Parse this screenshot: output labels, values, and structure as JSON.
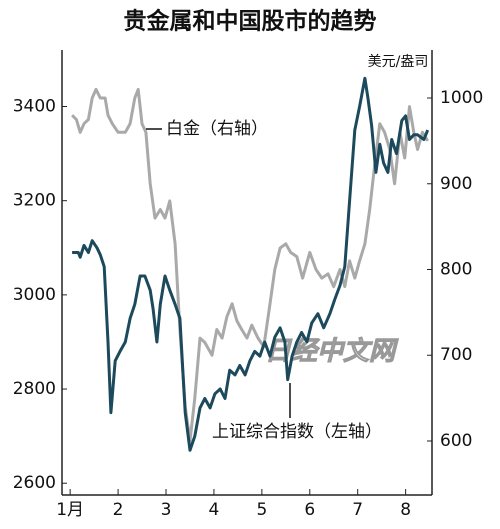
{
  "chart_data": {
    "type": "line",
    "title": "贵金属和中国股市的趋势",
    "y2_label": "美元/盎司",
    "watermark": "日经中文网",
    "xlim": [
      0.83,
      8.55
    ],
    "xticks": [
      {
        "value": 1,
        "label": "1月"
      },
      2,
      3,
      4,
      5,
      6,
      7,
      8
    ],
    "ylim": [
      2575,
      3520
    ],
    "yticks": [
      2600,
      2800,
      3000,
      3200,
      3400
    ],
    "y2lim": [
      537,
      1056
    ],
    "y2ticks": [
      600,
      700,
      800,
      900,
      1000
    ],
    "series": [
      {
        "name": "白金（右轴）",
        "color": "#a9a9a9",
        "axis": "y2",
        "x": [
          1.04,
          1.13,
          1.21,
          1.29,
          1.38,
          1.46,
          1.54,
          1.63,
          1.73,
          1.79,
          1.88,
          2.0,
          2.15,
          2.25,
          2.35,
          2.42,
          2.5,
          2.58,
          2.67,
          2.77,
          2.88,
          2.98,
          3.08,
          3.19,
          3.29,
          3.4,
          3.5,
          3.6,
          3.71,
          3.81,
          3.96,
          4.06,
          4.17,
          4.27,
          4.38,
          4.48,
          4.58,
          4.69,
          4.79,
          4.92,
          5.04,
          5.17,
          5.27,
          5.38,
          5.5,
          5.6,
          5.73,
          5.85,
          6.0,
          6.13,
          6.25,
          6.38,
          6.5,
          6.63,
          6.73,
          6.83,
          6.94,
          7.04,
          7.15,
          7.25,
          7.35,
          7.46,
          7.56,
          7.67,
          7.77,
          7.88,
          7.98,
          8.08,
          8.17,
          8.25,
          8.35,
          8.46
        ],
        "values": [
          980,
          975,
          960,
          970,
          975,
          1000,
          1010,
          1000,
          1000,
          980,
          970,
          960,
          960,
          970,
          1000,
          1010,
          970,
          960,
          900,
          860,
          870,
          860,
          880,
          830,
          730,
          640,
          600,
          650,
          720,
          715,
          700,
          730,
          720,
          745,
          760,
          740,
          730,
          720,
          735,
          720,
          710,
          760,
          800,
          825,
          830,
          820,
          815,
          790,
          820,
          800,
          790,
          795,
          780,
          800,
          780,
          810,
          790,
          810,
          830,
          870,
          920,
          970,
          960,
          940,
          900,
          960,
          930,
          990,
          960,
          940,
          960,
          950
        ]
      },
      {
        "name": "上证综合指数（左轴）",
        "color": "#1c4a5c",
        "axis": "y",
        "x": [
          1.04,
          1.17,
          1.21,
          1.29,
          1.38,
          1.46,
          1.56,
          1.63,
          1.71,
          1.79,
          1.85,
          1.94,
          2.04,
          2.15,
          2.25,
          2.35,
          2.46,
          2.56,
          2.67,
          2.73,
          2.81,
          2.88,
          2.98,
          3.08,
          3.19,
          3.29,
          3.4,
          3.5,
          3.6,
          3.71,
          3.81,
          3.92,
          4.02,
          4.13,
          4.23,
          4.33,
          4.44,
          4.54,
          4.65,
          4.75,
          4.85,
          4.96,
          5.06,
          5.17,
          5.27,
          5.38,
          5.48,
          5.54,
          5.63,
          5.73,
          5.83,
          5.94,
          6.04,
          6.17,
          6.29,
          6.42,
          6.52,
          6.63,
          6.73,
          6.83,
          6.94,
          7.04,
          7.15,
          7.21,
          7.29,
          7.38,
          7.46,
          7.54,
          7.63,
          7.71,
          7.81,
          7.92,
          8.0,
          8.08,
          8.17,
          8.25,
          8.38,
          8.46
        ],
        "values": [
          3090,
          3090,
          3080,
          3105,
          3090,
          3115,
          3100,
          3085,
          3060,
          2900,
          2750,
          2860,
          2880,
          2900,
          2950,
          2980,
          3040,
          3040,
          3010,
          2970,
          2900,
          2980,
          3040,
          3010,
          2980,
          2950,
          2750,
          2670,
          2700,
          2760,
          2780,
          2760,
          2790,
          2800,
          2780,
          2840,
          2830,
          2850,
          2830,
          2860,
          2880,
          2870,
          2900,
          2870,
          2910,
          2930,
          2900,
          2820,
          2870,
          2900,
          2920,
          2900,
          2940,
          2960,
          2930,
          2960,
          2990,
          3020,
          3060,
          3200,
          3350,
          3400,
          3460,
          3420,
          3360,
          3260,
          3320,
          3280,
          3260,
          3330,
          3300,
          3370,
          3380,
          3330,
          3340,
          3340,
          3330,
          3350
        ]
      }
    ]
  }
}
